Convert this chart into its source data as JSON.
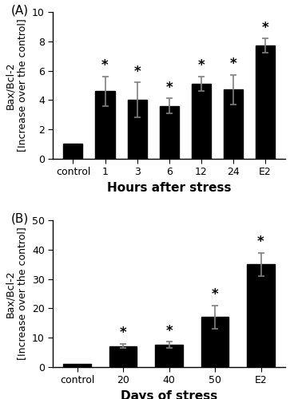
{
  "panel_A": {
    "categories": [
      "control",
      "1",
      "3",
      "6",
      "12",
      "24",
      "E2"
    ],
    "values": [
      1.0,
      4.6,
      4.0,
      3.6,
      5.1,
      4.7,
      7.7
    ],
    "errors": [
      0.0,
      1.0,
      1.2,
      0.5,
      0.5,
      1.0,
      0.5
    ],
    "sig": [
      false,
      true,
      true,
      true,
      true,
      true,
      true
    ],
    "xlabel": "Hours after stress",
    "ylabel": "Bax/Bcl-2\n[Increase over the control]",
    "label": "(A)",
    "ylim": [
      0,
      10
    ],
    "yticks": [
      0,
      2,
      4,
      6,
      8,
      10
    ]
  },
  "panel_B": {
    "categories": [
      "control",
      "20",
      "40",
      "50",
      "E2"
    ],
    "values": [
      1.0,
      7.2,
      7.6,
      17.0,
      35.0
    ],
    "errors": [
      0.0,
      0.8,
      1.0,
      4.0,
      4.0
    ],
    "sig": [
      false,
      true,
      true,
      true,
      true
    ],
    "xlabel": "Days of stress",
    "ylabel": "Bax/Bcl-2\n[Increase over the control]",
    "label": "(B)",
    "ylim": [
      0,
      50
    ],
    "yticks": [
      0,
      10,
      20,
      30,
      40,
      50
    ]
  },
  "bar_color": "#000000",
  "bar_width": 0.6,
  "error_color": "#808080",
  "sig_color": "#000000",
  "background_color": "#ffffff",
  "xlabel_fontsize": 11,
  "ylabel_fontsize": 9,
  "tick_fontsize": 9,
  "label_fontsize": 11,
  "sig_fontsize": 12
}
